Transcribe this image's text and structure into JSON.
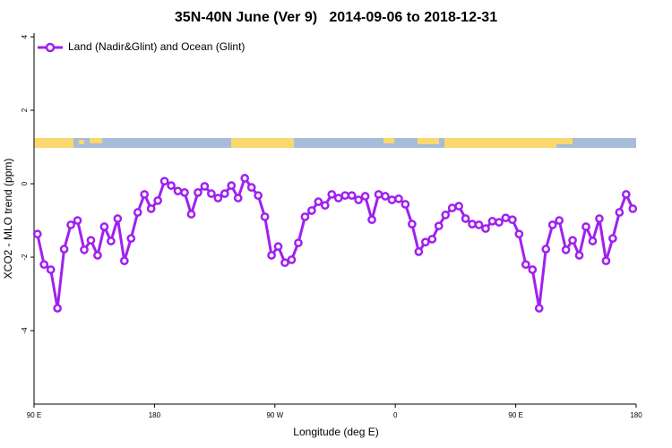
{
  "chart_data": {
    "type": "line",
    "title": "35N-40N June (Ver 9)   2014-09-06 to 2018-12-31",
    "x_label": "Longitude (deg E)",
    "y_label": "XCO2 - MLO trend (ppm)",
    "xlim": [
      90,
      540
    ],
    "ylim": [
      -6,
      4.1
    ],
    "xticks": [
      {
        "value": 90,
        "label": "90 E"
      },
      180,
      {
        "value": 270,
        "label": "90 W"
      },
      {
        "value": 360,
        "label": "0"
      },
      {
        "value": 450,
        "label": "90 E"
      },
      {
        "value": 540,
        "label": "180"
      }
    ],
    "yticks": [
      -4,
      -2,
      0,
      2,
      4
    ],
    "grid": false,
    "legend": "top-left",
    "x": [
      92.5,
      97.5,
      102.5,
      107.5,
      112.5,
      117.5,
      122.5,
      127.5,
      132.5,
      137.5,
      142.5,
      147.5,
      152.5,
      157.5,
      162.5,
      167.5,
      172.5,
      177.5,
      182.5,
      187.5,
      192.5,
      197.5,
      202.5,
      207.5,
      212.5,
      217.5,
      222.5,
      227.5,
      232.5,
      237.5,
      242.5,
      247.5,
      252.5,
      257.5,
      262.5,
      267.5,
      272.5,
      277.5,
      282.5,
      287.5,
      292.5,
      297.5,
      302.5,
      307.5,
      312.5,
      317.5,
      322.5,
      327.5,
      332.5,
      337.5,
      342.5,
      347.5,
      352.5,
      357.5,
      362.5,
      367.5,
      372.5,
      377.5,
      382.5,
      387.5,
      392.5,
      397.5,
      402.5,
      407.5,
      412.5,
      417.5,
      422.5,
      427.5,
      432.5,
      437.5,
      442.5,
      447.5,
      452.5,
      457.5,
      462.5,
      467.5,
      472.5,
      477.5,
      482.5,
      487.5,
      492.5,
      497.5,
      502.5,
      507.5,
      512.5,
      517.5,
      522.5,
      527.5,
      532.5,
      537.5
    ],
    "series": [
      {
        "name": "Land (Nadir&Glint) and Ocean (Glint)",
        "color": "#a020f0",
        "values": [
          -1.37,
          -2.2,
          -2.34,
          -3.39,
          -1.78,
          -1.12,
          -1.0,
          -1.8,
          -1.54,
          -1.95,
          -1.17,
          -1.56,
          -0.95,
          -2.1,
          -1.49,
          -0.78,
          -0.29,
          -0.68,
          -0.46,
          0.07,
          -0.05,
          -0.2,
          -0.24,
          -0.83,
          -0.24,
          -0.07,
          -0.27,
          -0.39,
          -0.27,
          -0.05,
          -0.39,
          0.15,
          -0.1,
          -0.32,
          -0.9,
          -1.95,
          -1.71,
          -2.15,
          -2.07,
          -1.61,
          -0.9,
          -0.73,
          -0.49,
          -0.59,
          -0.29,
          -0.39,
          -0.32,
          -0.32,
          -0.44,
          -0.34,
          -0.98,
          -0.29,
          -0.34,
          -0.44,
          -0.41,
          -0.56,
          -1.1,
          -1.85,
          -1.59,
          -1.51,
          -1.15,
          -0.85,
          -0.66,
          -0.61,
          -0.95,
          -1.1,
          -1.12,
          -1.22,
          -1.02,
          -1.05,
          -0.93,
          -0.98,
          -1.37,
          -2.2,
          -2.34,
          -3.39,
          -1.78,
          -1.12,
          -1.0,
          -1.8,
          -1.54,
          -1.95,
          -1.17,
          -1.56,
          -0.95,
          -2.1,
          -1.49,
          -0.78,
          -0.29,
          -0.68
        ]
      }
    ]
  }
}
